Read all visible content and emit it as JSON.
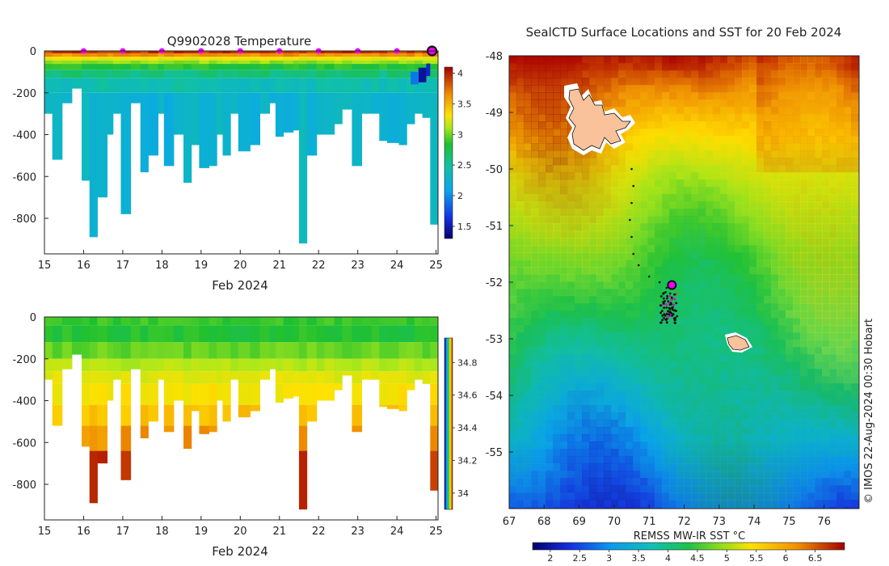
{
  "chart_data": [
    {
      "type": "heatmap",
      "title": "Q9902028  Temperature",
      "xlabel": "Feb 2024",
      "ylabel": "",
      "x_ticks": [
        "15",
        "16",
        "17",
        "18",
        "19",
        "20",
        "21",
        "22",
        "23",
        "24",
        "25"
      ],
      "y_ticks": [
        "0",
        "-200",
        "-400",
        "-600",
        "-800"
      ],
      "xlim": [
        15,
        25.05
      ],
      "ylim": [
        -970,
        0
      ],
      "colorbar": {
        "ticks": [
          "1.5",
          "2",
          "2.5",
          "3",
          "3.5",
          "4"
        ],
        "range": [
          1.3,
          4.1
        ]
      },
      "profiles": [
        {
          "day": 15.0,
          "depth": 300
        },
        {
          "day": 15.2,
          "depth": 520
        },
        {
          "day": 15.45,
          "depth": 250
        },
        {
          "day": 15.7,
          "depth": 180
        },
        {
          "day": 15.95,
          "depth": 620
        },
        {
          "day": 16.15,
          "depth": 890
        },
        {
          "day": 16.35,
          "depth": 700
        },
        {
          "day": 16.6,
          "depth": 400
        },
        {
          "day": 16.75,
          "depth": 300
        },
        {
          "day": 16.95,
          "depth": 780
        },
        {
          "day": 17.2,
          "depth": 250
        },
        {
          "day": 17.45,
          "depth": 580
        },
        {
          "day": 17.65,
          "depth": 500
        },
        {
          "day": 17.9,
          "depth": 300
        },
        {
          "day": 18.05,
          "depth": 550
        },
        {
          "day": 18.3,
          "depth": 400
        },
        {
          "day": 18.55,
          "depth": 630
        },
        {
          "day": 18.75,
          "depth": 450
        },
        {
          "day": 18.95,
          "depth": 560
        },
        {
          "day": 19.2,
          "depth": 550
        },
        {
          "day": 19.4,
          "depth": 400
        },
        {
          "day": 19.55,
          "depth": 500
        },
        {
          "day": 19.75,
          "depth": 300
        },
        {
          "day": 19.95,
          "depth": 480
        },
        {
          "day": 20.25,
          "depth": 450
        },
        {
          "day": 20.5,
          "depth": 300
        },
        {
          "day": 20.75,
          "depth": 250
        },
        {
          "day": 20.9,
          "depth": 410
        },
        {
          "day": 21.1,
          "depth": 390
        },
        {
          "day": 21.35,
          "depth": 380
        },
        {
          "day": 21.5,
          "depth": 920
        },
        {
          "day": 21.7,
          "depth": 500
        },
        {
          "day": 21.95,
          "depth": 400
        },
        {
          "day": 22.15,
          "depth": 400
        },
        {
          "day": 22.4,
          "depth": 350
        },
        {
          "day": 22.6,
          "depth": 280
        },
        {
          "day": 22.85,
          "depth": 550
        },
        {
          "day": 23.1,
          "depth": 300
        },
        {
          "day": 23.35,
          "depth": 300
        },
        {
          "day": 23.55,
          "depth": 430
        },
        {
          "day": 23.75,
          "depth": 440
        },
        {
          "day": 24.05,
          "depth": 450
        },
        {
          "day": 24.25,
          "depth": 350
        },
        {
          "day": 24.45,
          "depth": 300
        },
        {
          "day": 24.65,
          "depth": 320
        },
        {
          "day": 24.85,
          "depth": 830
        }
      ],
      "markers_day": [
        16,
        17,
        18,
        19,
        20,
        21,
        22,
        23,
        24
      ],
      "latest_marker_day": 25
    },
    {
      "type": "heatmap",
      "title": "",
      "xlabel": "Feb 2024",
      "x_ticks": [
        "15",
        "16",
        "17",
        "18",
        "19",
        "20",
        "21",
        "22",
        "23",
        "24",
        "25"
      ],
      "y_ticks": [
        "0",
        "-200",
        "-400",
        "-600",
        "-800"
      ],
      "xlim": [
        15,
        25.05
      ],
      "ylim": [
        -970,
        0
      ],
      "colorbar": {
        "ticks": [
          "34",
          "34.2",
          "34.4",
          "34.6",
          "34.8"
        ],
        "range": [
          33.9,
          34.95
        ]
      }
    },
    {
      "type": "heatmap",
      "title": "SealCTD Surface Locations and SST for 20 Feb 2024",
      "xlabel": "",
      "x_ticks": [
        "67",
        "68",
        "69",
        "70",
        "71",
        "72",
        "73",
        "74",
        "75",
        "76"
      ],
      "y_ticks": [
        "-48",
        "-49",
        "-50",
        "-51",
        "-52",
        "-53",
        "-54",
        "-55"
      ],
      "xlim": [
        67,
        77
      ],
      "ylim": [
        -56,
        -48
      ],
      "colorbar": {
        "label": "REMSS MW-IR SST °C",
        "ticks": [
          "2",
          "2.5",
          "3",
          "3.5",
          "4",
          "4.5",
          "5",
          "5.5",
          "6",
          "6.5"
        ],
        "range": [
          1.7,
          7.0
        ]
      },
      "track": [
        [
          70.5,
          -50.0
        ],
        [
          70.55,
          -50.3
        ],
        [
          70.5,
          -50.6
        ],
        [
          70.45,
          -50.9
        ],
        [
          70.5,
          -51.2
        ],
        [
          70.55,
          -51.5
        ],
        [
          70.7,
          -51.7
        ],
        [
          71.0,
          -51.9
        ],
        [
          71.3,
          -52.0
        ],
        [
          71.5,
          -52.1
        ],
        [
          71.6,
          -52.2
        ],
        [
          71.65,
          -52.3
        ],
        [
          71.7,
          -52.4
        ],
        [
          71.75,
          -52.5
        ],
        [
          71.8,
          -52.6
        ]
      ],
      "latest_position": [
        71.65,
        -52.05
      ],
      "credit": "© IMOS 22-Aug-2024 00:30 Hobart"
    }
  ]
}
